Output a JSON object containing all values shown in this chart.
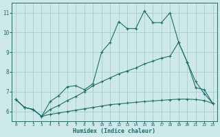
{
  "xlabel": "Humidex (Indice chaleur)",
  "bg_color": "#cce8e8",
  "grid_color": "#aacccc",
  "line_color": "#1a6e6a",
  "x": [
    0,
    1,
    2,
    3,
    4,
    5,
    6,
    7,
    8,
    9,
    10,
    11,
    12,
    13,
    14,
    15,
    16,
    17,
    18,
    19,
    20,
    21,
    22,
    23
  ],
  "y_top": [
    6.6,
    6.2,
    6.1,
    5.75,
    6.5,
    6.8,
    7.25,
    7.3,
    7.1,
    7.4,
    9.0,
    9.5,
    10.55,
    10.2,
    10.2,
    11.1,
    10.5,
    10.5,
    11.0,
    9.5,
    8.5,
    7.2,
    7.1,
    6.4
  ],
  "y_mid": [
    6.6,
    6.2,
    6.1,
    5.75,
    6.1,
    6.3,
    6.55,
    6.75,
    7.0,
    7.3,
    7.5,
    7.7,
    7.9,
    8.05,
    8.2,
    8.4,
    8.55,
    8.7,
    8.8,
    9.5,
    8.5,
    7.5,
    6.9,
    6.4
  ],
  "y_bot": [
    6.6,
    6.2,
    6.1,
    5.75,
    5.85,
    5.92,
    5.99,
    6.06,
    6.13,
    6.2,
    6.27,
    6.34,
    6.38,
    6.42,
    6.46,
    6.5,
    6.53,
    6.56,
    6.59,
    6.62,
    6.62,
    6.6,
    6.55,
    6.4
  ],
  "ylim": [
    5.5,
    11.5
  ],
  "xlim": [
    -0.5,
    23.5
  ],
  "yticks": [
    6,
    7,
    8,
    9,
    10,
    11
  ],
  "xticks": [
    0,
    1,
    2,
    3,
    4,
    5,
    6,
    7,
    8,
    9,
    10,
    11,
    12,
    13,
    14,
    15,
    16,
    17,
    18,
    19,
    20,
    21,
    22,
    23
  ]
}
